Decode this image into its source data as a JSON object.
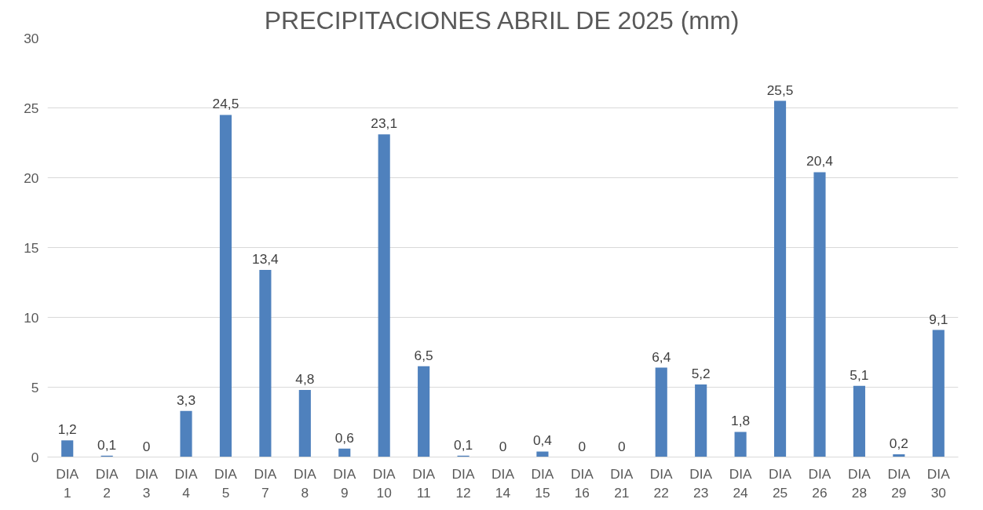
{
  "chart_data": {
    "type": "bar",
    "title": "PRECIPITACIONES ABRIL DE 2025 (mm)",
    "categories": [
      "DIA 1",
      "DIA 2",
      "DIA 3",
      "DIA 4",
      "DIA 5",
      "DIA 7",
      "DIA 8",
      "DIA 9",
      "DIA 10",
      "DIA 11",
      "DIA 12",
      "DIA 14",
      "DIA 15",
      "DIA 16",
      "DIA 21",
      "DIA 22",
      "DIA 23",
      "DIA 24",
      "DIA 25",
      "DIA 26",
      "DIA 28",
      "DIA 29",
      "DIA 30"
    ],
    "values": [
      1.2,
      0.1,
      0,
      3.3,
      24.5,
      13.4,
      4.8,
      0.6,
      23.1,
      6.5,
      0.1,
      0,
      0.4,
      0,
      0,
      6.4,
      5.2,
      1.8,
      25.5,
      20.4,
      5.1,
      0.2,
      9.1
    ],
    "value_labels": [
      "1,2",
      "0,1",
      "0",
      "3,3",
      "24,5",
      "13,4",
      "4,8",
      "0,6",
      "23,1",
      "6,5",
      "0,1",
      "0",
      "0,4",
      "0",
      "0",
      "6,4",
      "5,2",
      "1,8",
      "25,5",
      "20,4",
      "5,1",
      "0,2",
      "9,1"
    ],
    "color": "#4f81bd",
    "ylim": [
      0,
      30
    ],
    "yticks": [
      0,
      5,
      10,
      15,
      20,
      25,
      30
    ],
    "grid": "y"
  }
}
